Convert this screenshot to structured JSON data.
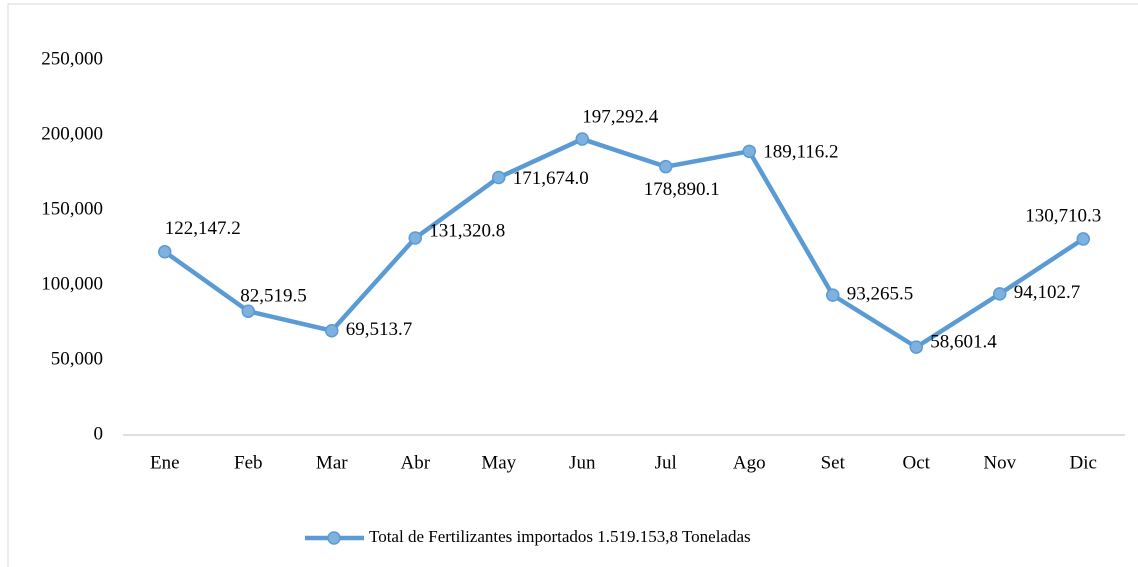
{
  "chart_data": {
    "type": "line",
    "categories": [
      "Ene",
      "Feb",
      "Mar",
      "Abr",
      "May",
      "Jun",
      "Jul",
      "Ago",
      "Set",
      "Oct",
      "Nov",
      "Dic"
    ],
    "series": [
      {
        "name": "Total de Fertilizantes importados 1.519.153,8 Toneladas",
        "color": "#5b9bd5",
        "values": [
          122147.2,
          82519.5,
          69513.7,
          131320.8,
          171674.0,
          197292.4,
          178890.1,
          189116.2,
          93265.5,
          58601.4,
          94102.7,
          130710.3
        ],
        "value_labels": [
          "122,147.2",
          "82,519.5",
          "69,513.7",
          "131,320.8",
          "171,674.0",
          "197,292.4",
          "178,890.1",
          "189,116.2",
          "93,265.5",
          "58,601.4",
          "94,102.7",
          "130,710.3"
        ]
      }
    ],
    "ylim": [
      0,
      250000
    ],
    "yticks": [
      0,
      {
        "value": 50000,
        "label": "50,000"
      },
      {
        "value": 100000,
        "label": "100,000"
      },
      {
        "value": 150000,
        "label": "150,000"
      },
      {
        "value": 200000,
        "label": "200,000"
      },
      {
        "value": 250000,
        "label": "250,000"
      }
    ],
    "grid": false,
    "legend": "bottom"
  }
}
